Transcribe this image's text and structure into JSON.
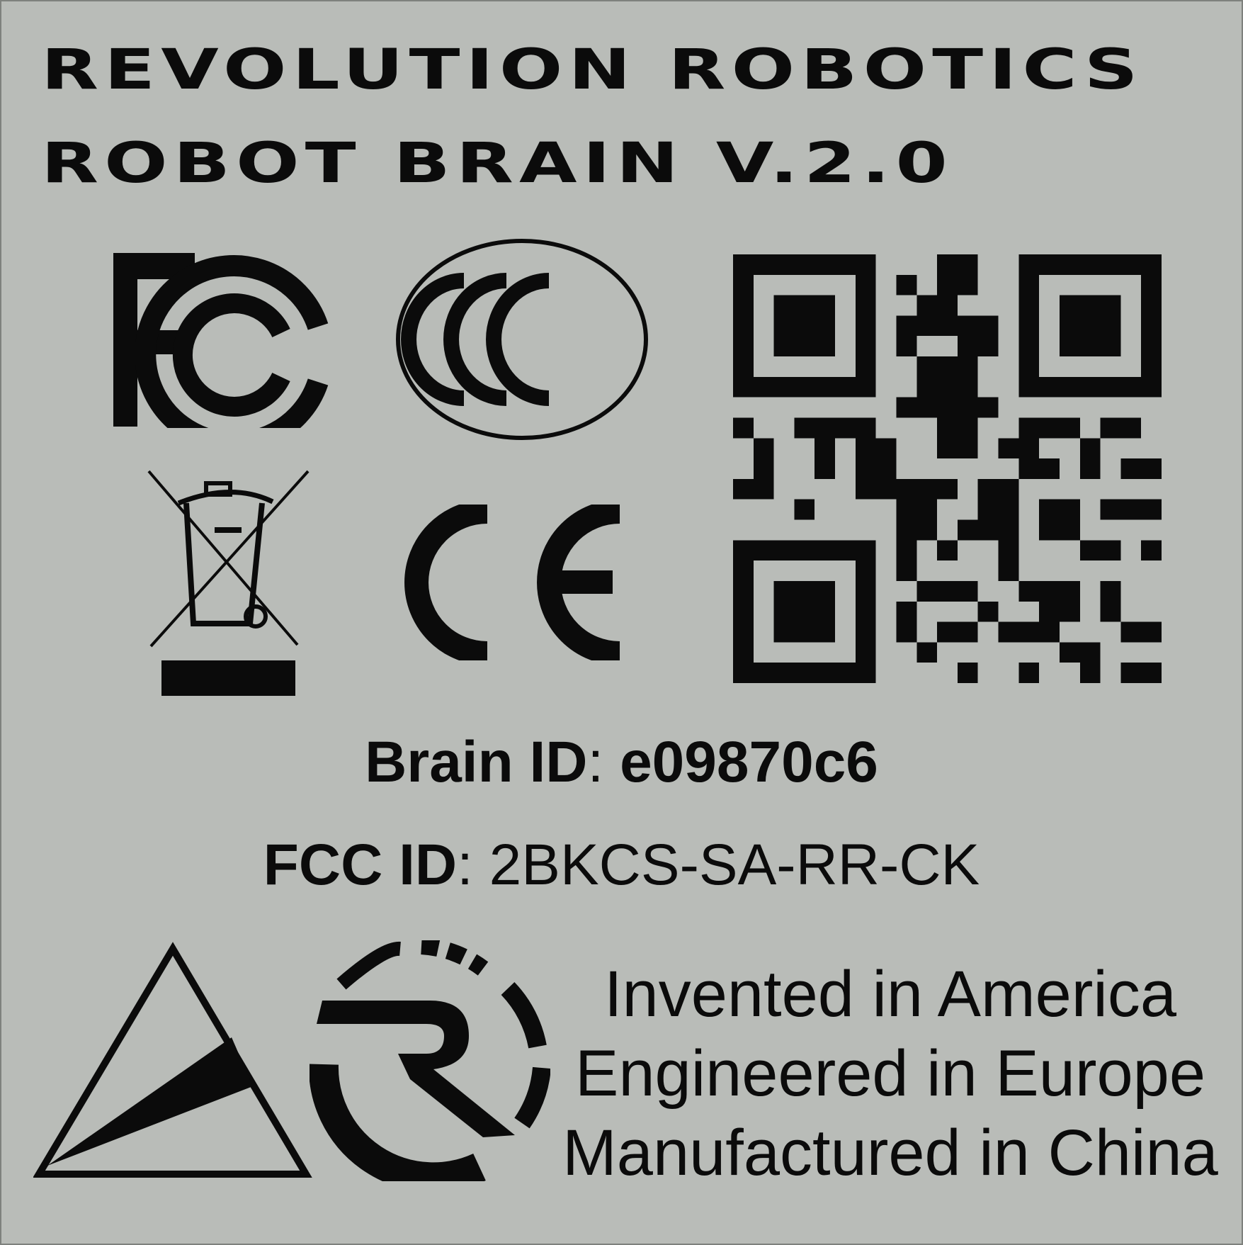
{
  "label": {
    "brand": "REVOLUTION ROBOTICS",
    "model": "ROBOT BRAIN V.2.0",
    "brain_id": {
      "label": "Brain ID",
      "separator": ":",
      "value": "e09870c6"
    },
    "fcc_id": {
      "label": "FCC ID",
      "separator": ":",
      "value": "2BKCS-SA-RR-CK"
    },
    "origin": [
      "Invented in America",
      "Engineered in Europe",
      "Manufactured in China"
    ]
  },
  "icons": [
    "fcc-logo-icon",
    "ccc-mark-icon",
    "qr-code-icon",
    "weee-bin-icon",
    "ce-mark-icon",
    "triangle-logo-icon",
    "revolution-r-logo-icon"
  ],
  "colors": {
    "background": "#b9bcb8",
    "ink": "#0b0b0b"
  }
}
